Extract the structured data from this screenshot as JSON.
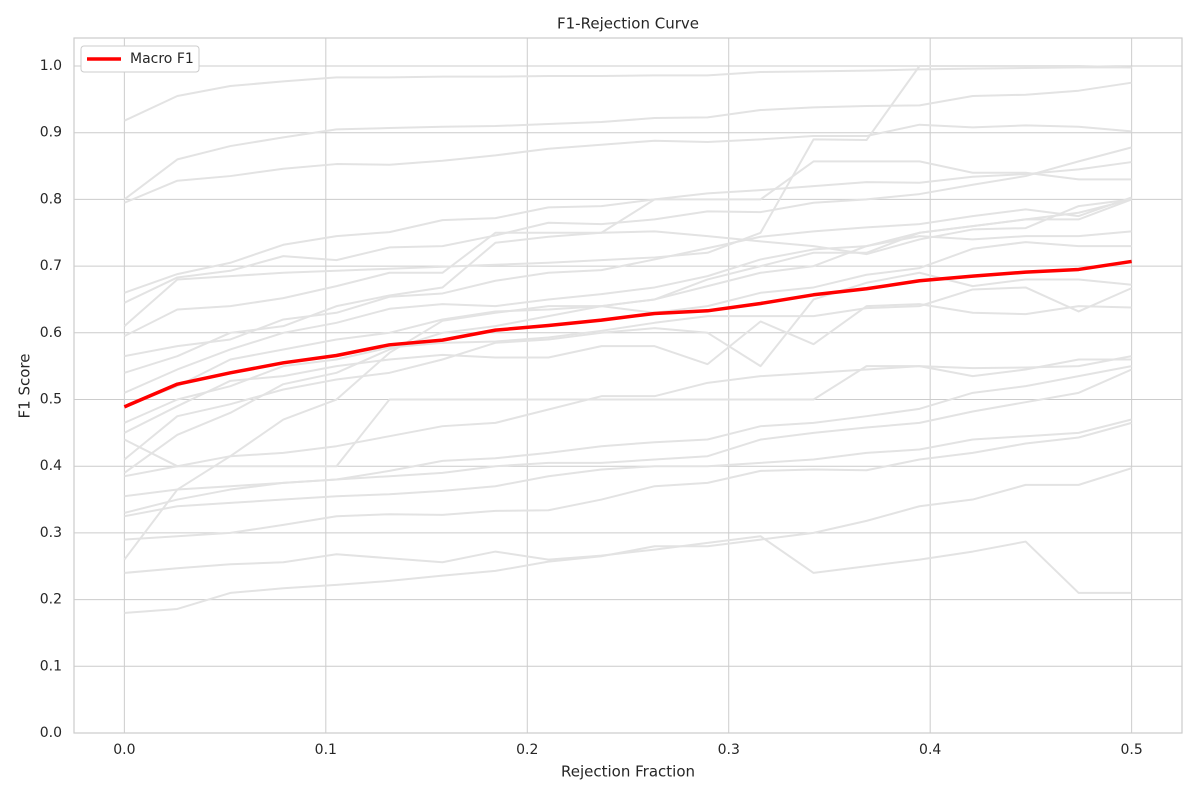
{
  "chart_data": {
    "type": "line",
    "title": "F1-Rejection Curve",
    "x_label": "Rejection Fraction",
    "y_label": "F1 Score",
    "x": [
      0,
      0.0263,
      0.0526,
      0.0789,
      0.1053,
      0.1316,
      0.1579,
      0.1842,
      0.2105,
      0.2368,
      0.2632,
      0.2895,
      0.3158,
      0.3421,
      0.3684,
      0.3947,
      0.4211,
      0.4474,
      0.4737,
      0.5
    ],
    "xlim": [
      -0.025,
      0.525
    ],
    "xticks": [
      {
        "value": 0,
        "label": "0.0"
      },
      0.1,
      0.2,
      0.3,
      0.4,
      0.5
    ],
    "ylim": [
      0,
      1.042
    ],
    "yticks": [
      {
        "value": 0,
        "label": "0.0"
      },
      0.1,
      0.2,
      0.3,
      0.4,
      0.5,
      0.6,
      0.7,
      0.8,
      0.9,
      {
        "value": 1,
        "label": "1.0"
      }
    ],
    "grid": true,
    "legend": "upper left",
    "series": [
      {
        "color": "#e3e3e3",
        "values": [
          0.918,
          0.955,
          0.97,
          0.977,
          0.983,
          0.983,
          0.984,
          0.984,
          0.985,
          0.985,
          0.986,
          0.986,
          0.991,
          0.992,
          0.993,
          0.995,
          0.996,
          0.997,
          0.998,
          0.998
        ]
      },
      {
        "color": "#e3e3e3",
        "values": [
          0.8,
          0.86,
          0.88,
          0.893,
          0.905,
          0.907,
          0.909,
          0.91,
          0.913,
          0.916,
          0.922,
          0.923,
          0.934,
          0.938,
          0.94,
          0.941,
          0.955,
          0.957,
          0.963,
          0.975
        ]
      },
      {
        "color": "#e3e3e3",
        "values": [
          0.795,
          0.828,
          0.835,
          0.846,
          0.853,
          0.852,
          0.858,
          0.866,
          0.876,
          0.882,
          0.888,
          0.886,
          0.89,
          0.895,
          0.895,
          0.912,
          0.908,
          0.911,
          0.909,
          0.902
        ]
      },
      {
        "color": "#e3e3e3",
        "values": [
          0.66,
          0.688,
          0.705,
          0.732,
          0.745,
          0.751,
          0.769,
          0.772,
          0.788,
          0.79,
          0.8,
          0.809,
          0.814,
          0.82,
          0.826,
          0.825,
          0.834,
          0.838,
          0.845,
          0.856
        ]
      },
      {
        "color": "#e3e3e3",
        "values": [
          0.645,
          0.683,
          0.693,
          0.715,
          0.709,
          0.728,
          0.73,
          0.746,
          0.765,
          0.763,
          0.77,
          0.782,
          0.781,
          0.795,
          0.8,
          0.808,
          0.822,
          0.835,
          0.857,
          0.878
        ]
      },
      {
        "color": "#e3e3e3",
        "values": [
          0.61,
          0.68,
          0.685,
          0.69,
          0.693,
          0.696,
          0.699,
          0.702,
          0.705,
          0.709,
          0.713,
          0.72,
          0.75,
          0.89,
          0.889,
          1.0,
          1.0,
          1.0,
          1.0,
          0.998
        ]
      },
      {
        "color": "#e3e3e3",
        "values": [
          0.595,
          0.635,
          0.64,
          0.652,
          0.67,
          0.69,
          0.69,
          0.75,
          0.75,
          0.75,
          0.8,
          0.8,
          0.8,
          0.857,
          0.857,
          0.857,
          0.84,
          0.84,
          0.83,
          0.83
        ]
      },
      {
        "color": "#e3e3e3",
        "values": [
          0.565,
          0.58,
          0.59,
          0.62,
          0.63,
          0.654,
          0.659,
          0.678,
          0.69,
          0.694,
          0.71,
          0.727,
          0.744,
          0.752,
          0.758,
          0.763,
          0.775,
          0.785,
          0.775,
          0.803
        ]
      },
      {
        "color": "#e3e3e3",
        "values": [
          0.54,
          0.565,
          0.6,
          0.61,
          0.64,
          0.656,
          0.668,
          0.735,
          0.744,
          0.75,
          0.752,
          0.745,
          0.737,
          0.73,
          0.718,
          0.74,
          0.755,
          0.757,
          0.79,
          0.8
        ]
      },
      {
        "color": "#e3e3e3",
        "values": [
          0.51,
          0.545,
          0.575,
          0.6,
          0.615,
          0.636,
          0.643,
          0.64,
          0.65,
          0.658,
          0.668,
          0.685,
          0.71,
          0.725,
          0.73,
          0.745,
          0.74,
          0.745,
          0.745,
          0.752
        ]
      },
      {
        "color": "#e3e3e3",
        "values": [
          0.49,
          0.52,
          0.56,
          0.575,
          0.59,
          0.6,
          0.62,
          0.632,
          0.635,
          0.64,
          0.63,
          0.64,
          0.66,
          0.668,
          0.687,
          0.697,
          0.726,
          0.736,
          0.73,
          0.73
        ]
      },
      {
        "color": "#e3e3e3",
        "values": [
          0.465,
          0.5,
          0.52,
          0.55,
          0.56,
          0.578,
          0.585,
          0.587,
          0.593,
          0.603,
          0.615,
          0.625,
          0.625,
          0.625,
          0.637,
          0.64,
          0.665,
          0.668,
          0.632,
          0.667
        ]
      },
      {
        "color": "#e3e3e3",
        "values": [
          0.45,
          0.49,
          0.528,
          0.535,
          0.55,
          0.56,
          0.567,
          0.563,
          0.563,
          0.58,
          0.58,
          0.553,
          0.617,
          0.583,
          0.64,
          0.643,
          0.63,
          0.628,
          0.64,
          0.638
        ]
      },
      {
        "color": "#e3e3e3",
        "values": [
          0.44,
          0.4,
          0.4,
          0.4,
          0.4,
          0.5,
          0.5,
          0.5,
          0.5,
          0.5,
          0.5,
          0.5,
          0.5,
          0.5,
          0.55,
          0.55,
          0.535,
          0.545,
          0.56,
          0.56
        ]
      },
      {
        "color": "#e3e3e3",
        "values": [
          0.41,
          0.475,
          0.493,
          0.515,
          0.53,
          0.54,
          0.56,
          0.585,
          0.59,
          0.6,
          0.607,
          0.6,
          0.55,
          0.65,
          0.675,
          0.69,
          0.67,
          0.68,
          0.68,
          0.672
        ]
      },
      {
        "color": "#e3e3e3",
        "values": [
          0.39,
          0.447,
          0.48,
          0.523,
          0.54,
          0.575,
          0.6,
          0.61,
          0.625,
          0.64,
          0.65,
          0.67,
          0.69,
          0.7,
          0.73,
          0.75,
          0.76,
          0.77,
          0.77,
          0.8
        ]
      },
      {
        "color": "#e3e3e3",
        "values": [
          0.385,
          0.4,
          0.415,
          0.42,
          0.43,
          0.445,
          0.46,
          0.465,
          0.485,
          0.505,
          0.505,
          0.525,
          0.535,
          0.54,
          0.545,
          0.55,
          0.547,
          0.548,
          0.55,
          0.565
        ]
      },
      {
        "color": "#e3e3e3",
        "values": [
          0.355,
          0.365,
          0.37,
          0.375,
          0.38,
          0.393,
          0.408,
          0.412,
          0.42,
          0.43,
          0.436,
          0.44,
          0.46,
          0.465,
          0.475,
          0.486,
          0.51,
          0.52,
          0.535,
          0.55
        ]
      },
      {
        "color": "#e3e3e3",
        "values": [
          0.33,
          0.35,
          0.365,
          0.375,
          0.38,
          0.385,
          0.39,
          0.4,
          0.405,
          0.405,
          0.41,
          0.415,
          0.44,
          0.45,
          0.458,
          0.465,
          0.482,
          0.496,
          0.51,
          0.545
        ]
      },
      {
        "color": "#e3e3e3",
        "values": [
          0.325,
          0.34,
          0.345,
          0.35,
          0.355,
          0.358,
          0.363,
          0.37,
          0.385,
          0.395,
          0.4,
          0.4,
          0.405,
          0.41,
          0.42,
          0.425,
          0.44,
          0.445,
          0.45,
          0.47
        ]
      },
      {
        "color": "#e3e3e3",
        "values": [
          0.29,
          0.295,
          0.3,
          0.312,
          0.325,
          0.328,
          0.327,
          0.333,
          0.334,
          0.35,
          0.37,
          0.375,
          0.393,
          0.395,
          0.394,
          0.41,
          0.42,
          0.434,
          0.443,
          0.465
        ]
      },
      {
        "color": "#e3e3e3",
        "values": [
          0.26,
          0.365,
          0.415,
          0.47,
          0.5,
          0.57,
          0.618,
          0.63,
          0.64,
          0.64,
          0.65,
          0.68,
          0.7,
          0.72,
          0.72,
          0.75,
          0.76,
          0.77,
          0.78,
          0.8
        ]
      },
      {
        "color": "#e3e3e3",
        "values": [
          0.24,
          0.247,
          0.253,
          0.256,
          0.268,
          0.262,
          0.256,
          0.272,
          0.26,
          0.266,
          0.275,
          0.285,
          0.295,
          0.24,
          0.25,
          0.26,
          0.272,
          0.287,
          0.21,
          0.21
        ]
      },
      {
        "color": "#e3e3e3",
        "values": [
          0.18,
          0.186,
          0.21,
          0.217,
          0.222,
          0.228,
          0.236,
          0.243,
          0.257,
          0.265,
          0.28,
          0.28,
          0.29,
          0.3,
          0.318,
          0.34,
          0.35,
          0.372,
          0.372,
          0.397
        ]
      },
      {
        "name": "Macro F1",
        "color": "#ff0000",
        "values": [
          0.489,
          0.523,
          0.54,
          0.555,
          0.566,
          0.582,
          0.589,
          0.604,
          0.611,
          0.619,
          0.629,
          0.633,
          0.644,
          0.657,
          0.666,
          0.678,
          0.685,
          0.691,
          0.695,
          0.707
        ]
      }
    ]
  }
}
